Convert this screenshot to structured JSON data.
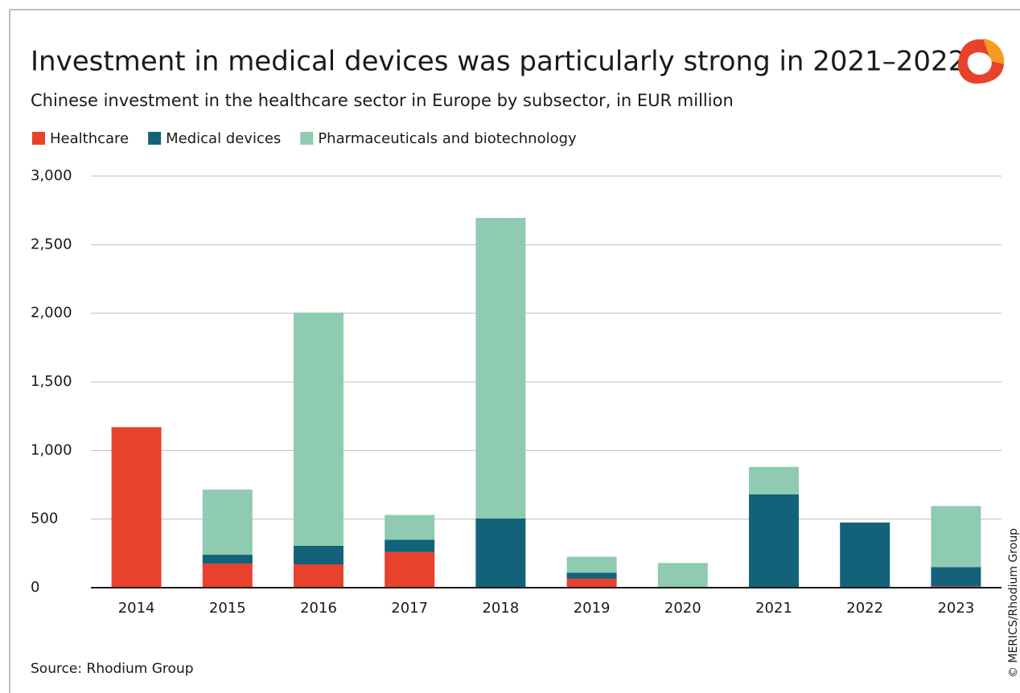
{
  "chart_data": {
    "type": "stacked_bar",
    "title": "Investment in medical devices was particularly strong in 2021–2022",
    "subtitle": "Chinese investment in the healthcare sector in Europe by subsector, in EUR million",
    "source": "Source: Rhodium Group",
    "credit": "© MERICS/Rhodium Group",
    "categories": [
      "2014",
      "2015",
      "2016",
      "2017",
      "2018",
      "2019",
      "2020",
      "2021",
      "2022",
      "2023"
    ],
    "series": [
      {
        "name": "Healthcare",
        "color": "#e8412c",
        "values": [
          1170,
          175,
          170,
          260,
          5,
          65,
          5,
          0,
          0,
          10
        ]
      },
      {
        "name": "Medical devices",
        "color": "#13627a",
        "values": [
          0,
          65,
          135,
          90,
          500,
          45,
          0,
          680,
          475,
          140
        ]
      },
      {
        "name": "Pharmaceuticals and biotechnology",
        "color": "#8ecbb0",
        "values": [
          0,
          475,
          1700,
          180,
          2190,
          115,
          175,
          200,
          0,
          445
        ]
      }
    ],
    "ylim": [
      0,
      3000
    ],
    "yticks": [
      0,
      500,
      {
        "value": 1000,
        "label": "1,000"
      },
      {
        "value": 1500,
        "label": "1,500"
      },
      {
        "value": 2000,
        "label": "2,000"
      },
      {
        "value": 2500,
        "label": "2,500"
      },
      {
        "value": 3000,
        "label": "3,000"
      }
    ],
    "grid": true
  }
}
